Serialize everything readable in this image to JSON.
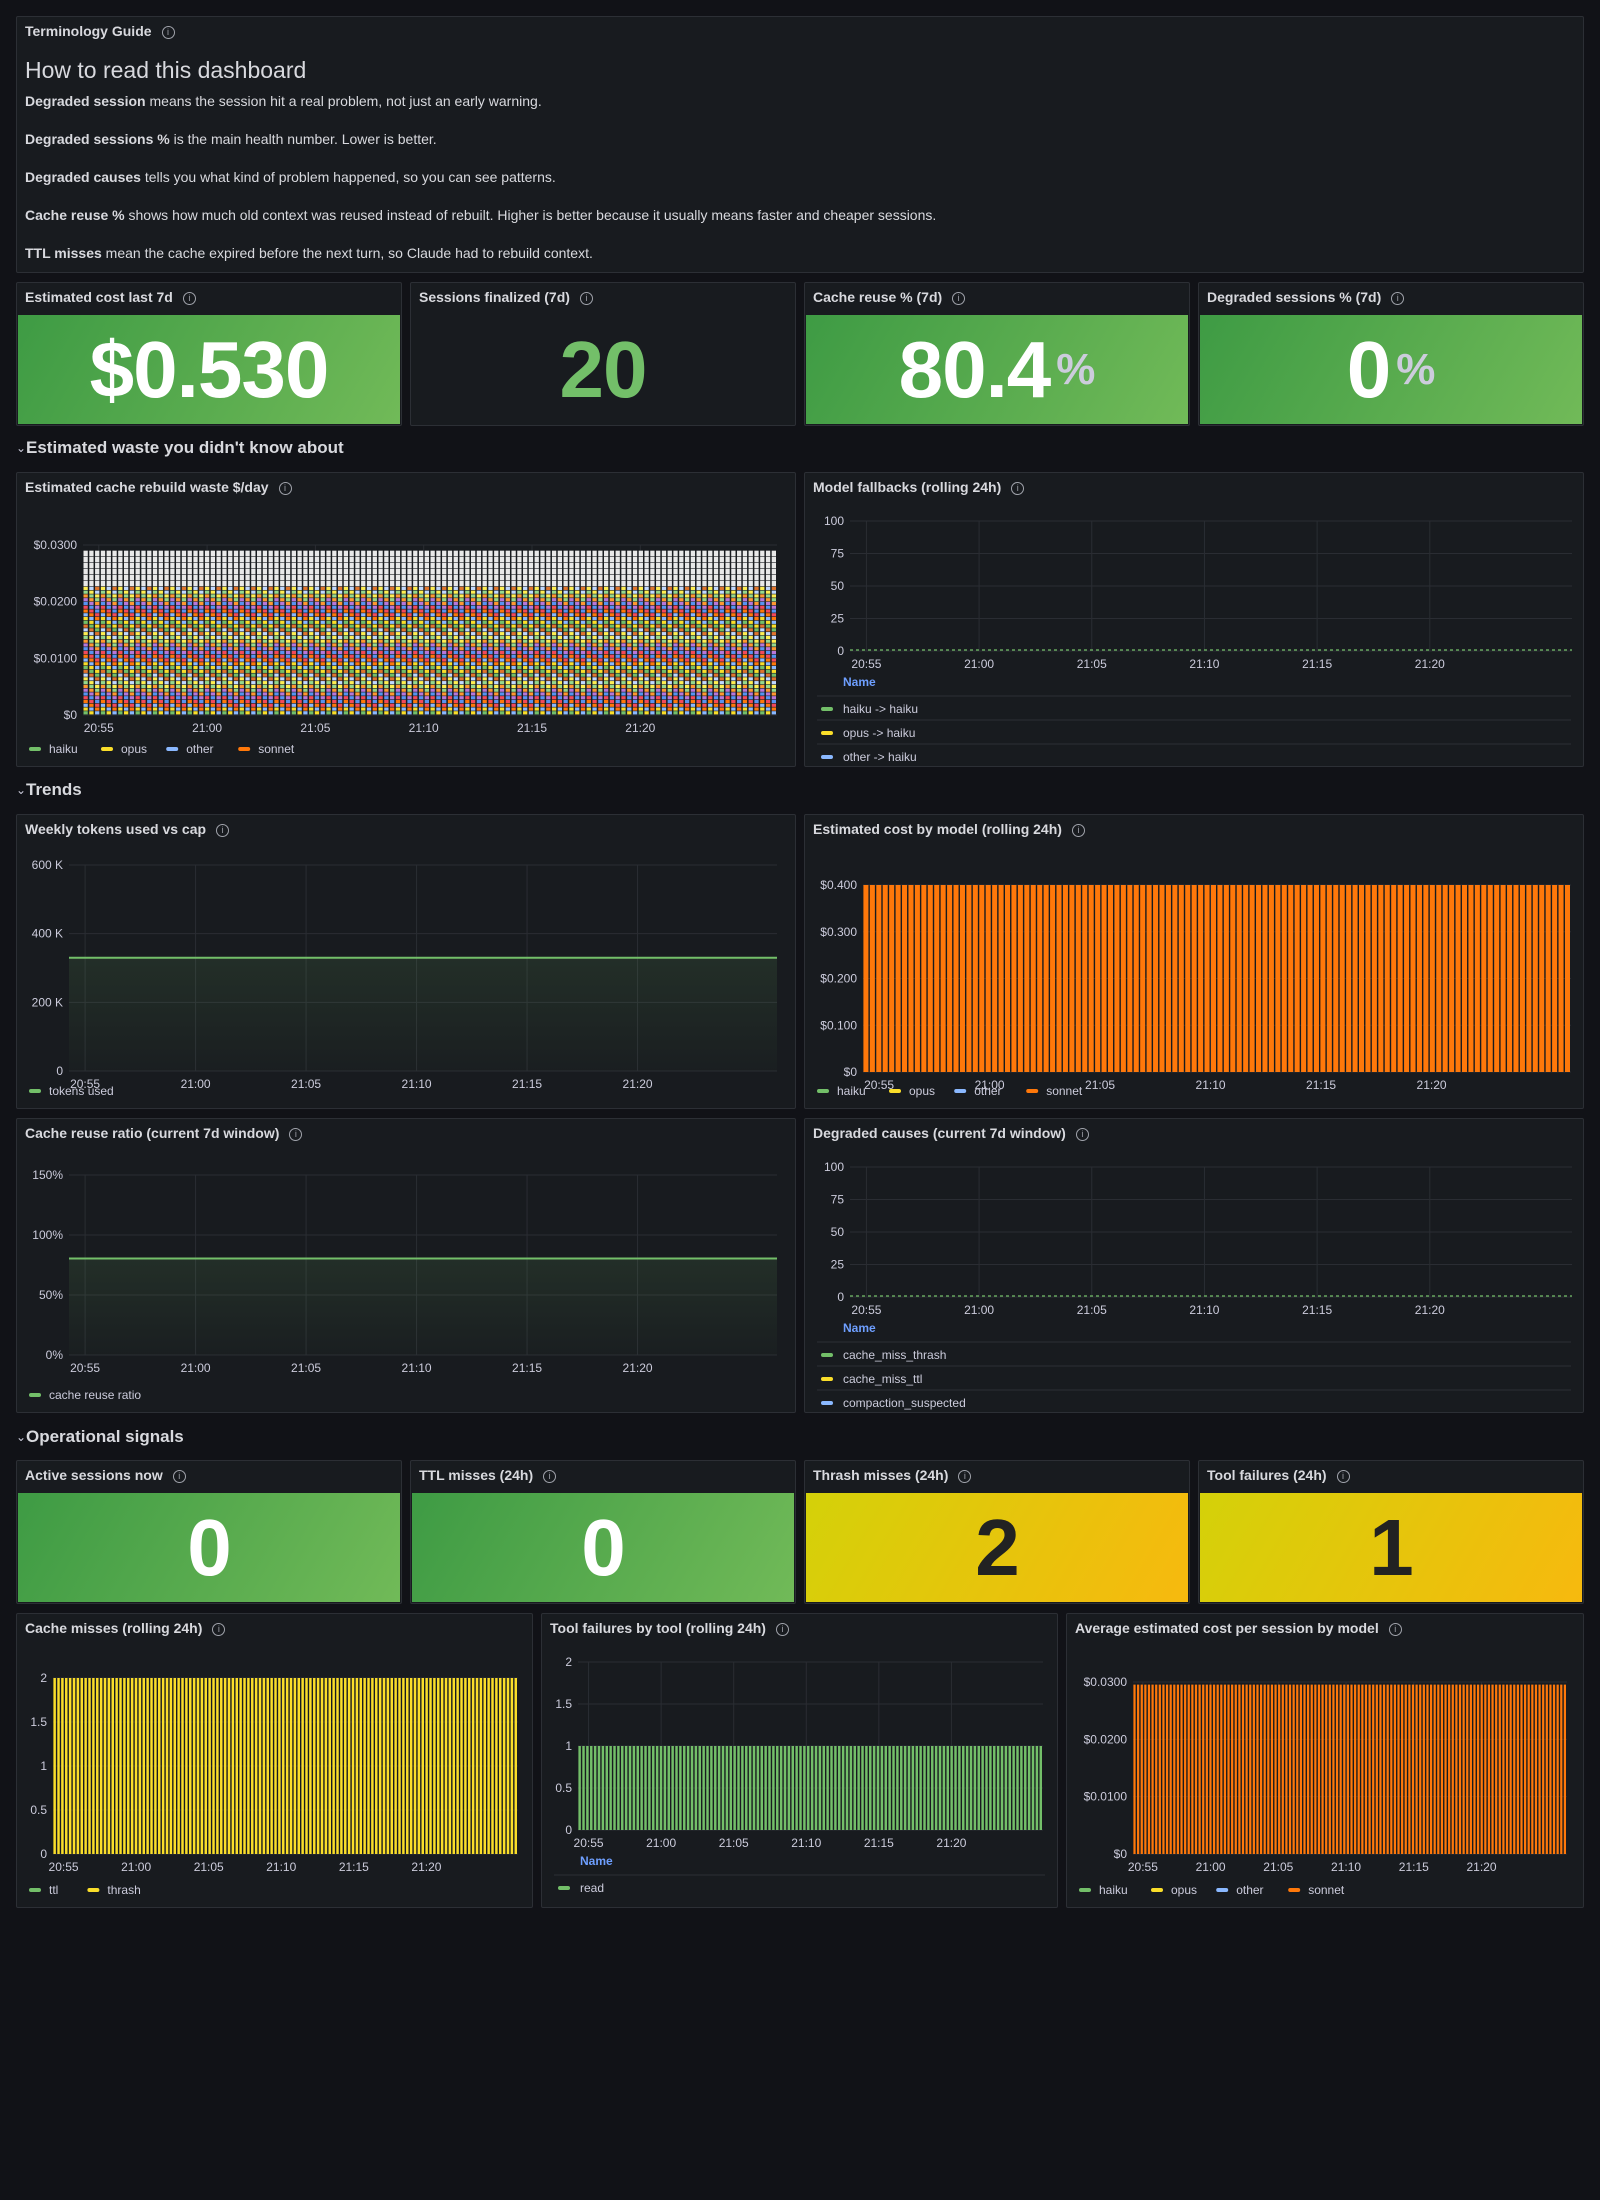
{
  "guide": {
    "panel_title": "Terminology Guide",
    "heading": "How to read this dashboard",
    "lines": [
      {
        "term": "Degraded session",
        "text": " means the session hit a real problem, not just an early warning."
      },
      {
        "term": "Degraded sessions %",
        "text": " is the main health number. Lower is better."
      },
      {
        "term": "Degraded causes",
        "text": " tells you what kind of problem happened, so you can see patterns."
      },
      {
        "term": "Cache reuse %",
        "text": " shows how much old context was reused instead of rebuilt. Higher is better because it usually means faster and cheaper sessions."
      },
      {
        "term": "TTL misses",
        "text": " mean the cache expired before the next turn, so Claude had to rebuild context."
      }
    ]
  },
  "stats_top": [
    {
      "title": "Estimated cost last 7d",
      "value": "$0.530",
      "unit": "",
      "style": "green"
    },
    {
      "title": "Sessions finalized (7d)",
      "value": "20",
      "unit": "",
      "style": "plain"
    },
    {
      "title": "Cache reuse % (7d)",
      "value": "80.4",
      "unit": "%",
      "style": "green"
    },
    {
      "title": "Degraded sessions % (7d)",
      "value": "0",
      "unit": "%",
      "style": "green"
    }
  ],
  "rows": {
    "waste": "Estimated waste you didn't know about",
    "trends": "Trends",
    "ops": "Operational signals"
  },
  "stats_ops": [
    {
      "title": "Active sessions now",
      "value": "0",
      "style": "green"
    },
    {
      "title": "TTL misses (24h)",
      "value": "0",
      "style": "green"
    },
    {
      "title": "Thrash misses (24h)",
      "value": "2",
      "style": "yellow"
    },
    {
      "title": "Tool failures (24h)",
      "value": "1",
      "style": "yellow"
    }
  ],
  "colors": {
    "green": "#73bf69",
    "yellow": "#fade2a",
    "blue": "#8ab8ff",
    "orange": "#ff780a",
    "name_header": "#6e9fff"
  },
  "time_ticks": [
    "20:55",
    "21:00",
    "21:05",
    "21:10",
    "21:15",
    "21:20"
  ],
  "chart_data": [
    {
      "id": "rebuild-waste",
      "type": "bar",
      "title": "Estimated cache rebuild waste $/day",
      "y_ticks": [
        "$0",
        "$0.0100",
        "$0.0200",
        "$0.0300"
      ],
      "ylim": [
        0,
        0.03
      ],
      "series": [
        {
          "name": "haiku"
        },
        {
          "name": "opus"
        },
        {
          "name": "other"
        },
        {
          "name": "sonnet"
        }
      ],
      "values_stacked_total": 0.029,
      "legend": "bottom"
    },
    {
      "id": "model-fallbacks",
      "type": "line",
      "title": "Model fallbacks (rolling 24h)",
      "y_ticks": [
        "0",
        "25",
        "50",
        "75",
        "100"
      ],
      "ylim": [
        0,
        100
      ],
      "value": 0,
      "legend_header": "Name",
      "series": [
        {
          "name": "haiku -> haiku",
          "color": "#73bf69"
        },
        {
          "name": "opus -> haiku",
          "color": "#fade2a"
        },
        {
          "name": "other -> haiku",
          "color": "#8ab8ff"
        }
      ]
    },
    {
      "id": "weekly-tokens",
      "type": "area",
      "title": "Weekly tokens used vs cap",
      "y_ticks": [
        "0",
        "200 K",
        "400 K",
        "600 K"
      ],
      "ylim": [
        0,
        600000
      ],
      "value": 330000,
      "series": [
        {
          "name": "tokens used",
          "color": "#73bf69"
        }
      ]
    },
    {
      "id": "cost-by-model",
      "type": "bar",
      "title": "Estimated cost by model (rolling 24h)",
      "y_ticks": [
        "$0",
        "$0.100",
        "$0.200",
        "$0.300",
        "$0.400"
      ],
      "ylim": [
        0,
        0.42
      ],
      "value": 0.42,
      "series": [
        {
          "name": "haiku",
          "color": "#73bf69"
        },
        {
          "name": "opus",
          "color": "#fade2a"
        },
        {
          "name": "other",
          "color": "#8ab8ff"
        },
        {
          "name": "sonnet",
          "color": "#ff780a"
        }
      ]
    },
    {
      "id": "cache-reuse-ratio",
      "type": "area",
      "title": "Cache reuse ratio (current 7d window)",
      "y_ticks": [
        "0%",
        "50%",
        "100%",
        "150%"
      ],
      "ylim": [
        0,
        1.5
      ],
      "value": 0.804,
      "series": [
        {
          "name": "cache reuse ratio",
          "color": "#73bf69"
        }
      ]
    },
    {
      "id": "degraded-causes",
      "type": "line",
      "title": "Degraded causes (current 7d window)",
      "y_ticks": [
        "0",
        "25",
        "50",
        "75",
        "100"
      ],
      "ylim": [
        0,
        100
      ],
      "value": 0,
      "legend_header": "Name",
      "series": [
        {
          "name": "cache_miss_thrash",
          "color": "#73bf69"
        },
        {
          "name": "cache_miss_ttl",
          "color": "#fade2a"
        },
        {
          "name": "compaction_suspected",
          "color": "#8ab8ff"
        }
      ]
    },
    {
      "id": "cache-misses",
      "type": "bar",
      "title": "Cache misses (rolling 24h)",
      "y_ticks": [
        "0",
        "0.5",
        "1",
        "1.5",
        "2"
      ],
      "ylim": [
        0,
        2
      ],
      "value": 2,
      "series": [
        {
          "name": "ttl",
          "color": "#73bf69"
        },
        {
          "name": "thrash",
          "color": "#fade2a"
        }
      ]
    },
    {
      "id": "tool-failures",
      "type": "bar",
      "title": "Tool failures by tool (rolling 24h)",
      "y_ticks": [
        "0",
        "0.5",
        "1",
        "1.5",
        "2"
      ],
      "ylim": [
        0,
        2
      ],
      "value": 1,
      "legend_header": "Name",
      "series": [
        {
          "name": "read",
          "color": "#73bf69"
        }
      ]
    },
    {
      "id": "avg-cost-session",
      "type": "bar",
      "title": "Average estimated cost per session by model",
      "y_ticks": [
        "$0",
        "$0.0100",
        "$0.0200",
        "$0.0300"
      ],
      "ylim": [
        0,
        0.033
      ],
      "value": 0.0325,
      "series": [
        {
          "name": "haiku",
          "color": "#73bf69"
        },
        {
          "name": "opus",
          "color": "#fade2a"
        },
        {
          "name": "other",
          "color": "#8ab8ff"
        },
        {
          "name": "sonnet",
          "color": "#ff780a"
        }
      ]
    }
  ]
}
